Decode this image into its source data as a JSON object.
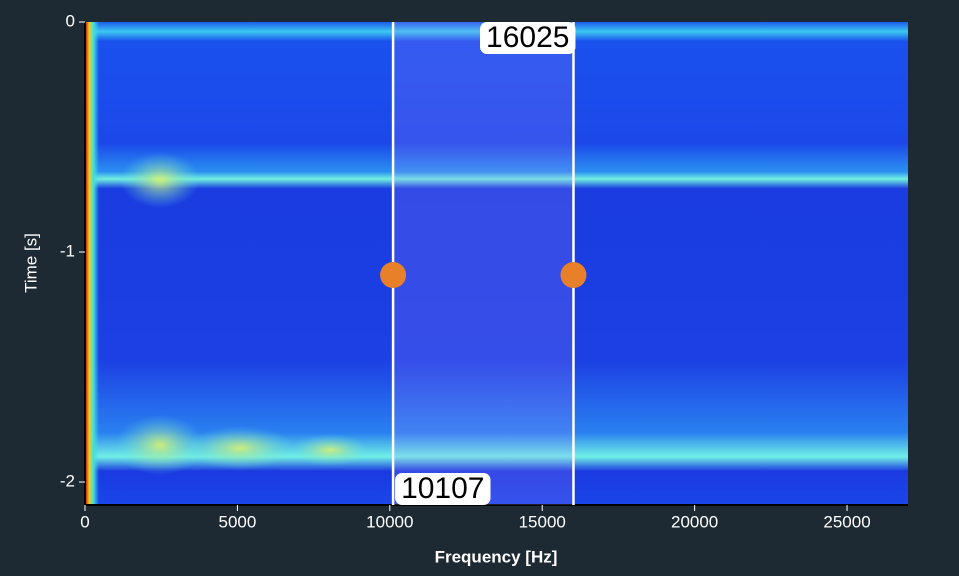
{
  "chart_data": {
    "type": "spectrogram",
    "xlabel": "Frequency [Hz]",
    "ylabel": "Time [s]",
    "xlim": [
      0,
      27000
    ],
    "ylim": [
      -2.1,
      0
    ],
    "xticks": [
      0,
      5000,
      10000,
      15000,
      20000,
      25000
    ],
    "yticks": [
      0,
      -1,
      -2
    ],
    "cursors": [
      10107,
      16025
    ]
  }
}
